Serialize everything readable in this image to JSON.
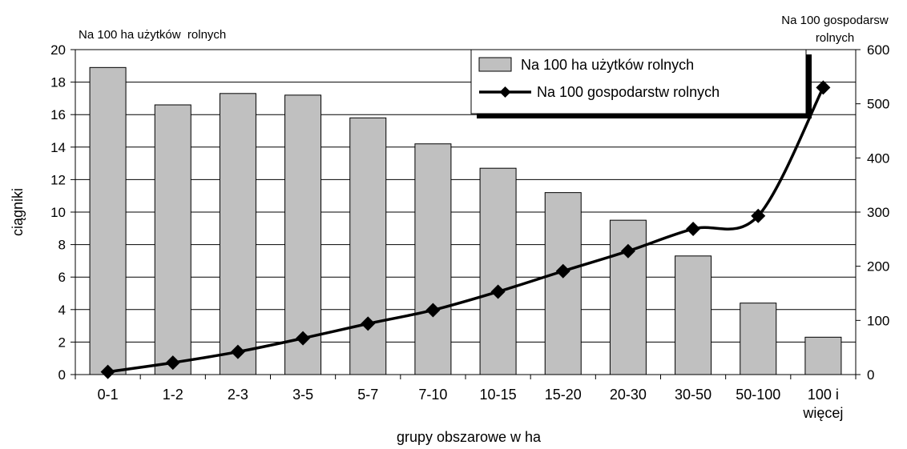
{
  "chart_data": {
    "type": "bar+line",
    "left_axis_caption": "Na 100 ha użytków  rolnych",
    "right_axis_caption_line1": "Na 100 gospodarsw",
    "right_axis_caption_line2": "rolnych",
    "ylabel": "ciągniki",
    "xlabel": "grupy obszarowe w ha",
    "categories": [
      "0-1",
      "1-2",
      "2-3",
      "3-5",
      "5-7",
      "7-10",
      "10-15",
      "15-20",
      "20-30",
      "30-50",
      "50-100",
      "100 i więcej"
    ],
    "category_lines": [
      [
        "0-1"
      ],
      [
        "1-2"
      ],
      [
        "2-3"
      ],
      [
        "3-5"
      ],
      [
        "5-7"
      ],
      [
        "7-10"
      ],
      [
        "10-15"
      ],
      [
        "15-20"
      ],
      [
        "20-30"
      ],
      [
        "30-50"
      ],
      [
        "50-100"
      ],
      [
        "100 i",
        "więcej"
      ]
    ],
    "y_left": {
      "min": 0,
      "max": 20,
      "ticks": [
        0,
        2,
        4,
        6,
        8,
        10,
        12,
        14,
        16,
        18,
        20
      ]
    },
    "y_right": {
      "min": 0,
      "max": 600,
      "ticks": [
        0,
        100,
        200,
        300,
        400,
        500,
        600
      ]
    },
    "grid": true,
    "legend_position": "top-right",
    "series": [
      {
        "name": "Na 100 ha użytków rolnych",
        "type": "bar",
        "axis": "left",
        "color": "#c0c0c0",
        "values": [
          18.9,
          16.6,
          17.3,
          17.2,
          15.8,
          14.2,
          12.7,
          11.2,
          9.5,
          7.3,
          4.4,
          2.3
        ]
      },
      {
        "name": "Na 100 gospodarstw rolnych",
        "type": "line",
        "axis": "right",
        "color": "#000000",
        "marker": "diamond",
        "values": [
          5,
          22,
          42,
          67,
          94,
          119,
          153,
          191,
          228,
          269,
          293,
          530
        ]
      }
    ]
  }
}
